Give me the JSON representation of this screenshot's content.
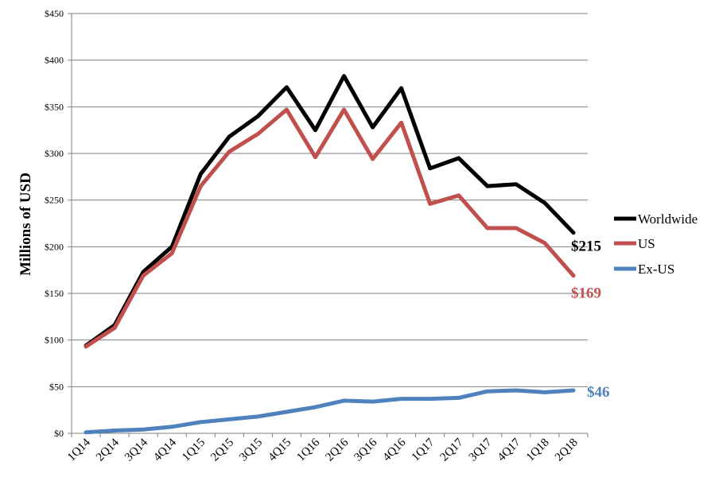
{
  "chart_data": {
    "type": "line",
    "title": "",
    "xlabel": "",
    "ylabel": "Millions of USD",
    "ylim": [
      0,
      450
    ],
    "ytick_step": 50,
    "ytick_labels": [
      "$0",
      "$50",
      "$100",
      "$150",
      "$200",
      "$250",
      "$300",
      "$350",
      "$400",
      "$450"
    ],
    "grid": true,
    "legend_position": "right",
    "categories": [
      "1Q14",
      "2Q14",
      "3Q14",
      "4Q14",
      "1Q15",
      "2Q15",
      "3Q15",
      "4Q15",
      "1Q16",
      "2Q16",
      "3Q16",
      "4Q16",
      "1Q17",
      "2Q17",
      "3Q17",
      "4Q17",
      "1Q18",
      "2Q18"
    ],
    "series": [
      {
        "name": "Worldwide",
        "color": "#000000",
        "values": [
          94,
          116,
          173,
          200,
          278,
          318,
          340,
          371,
          325,
          383,
          328,
          370,
          284,
          295,
          265,
          267,
          247,
          215
        ],
        "end_label": "$215"
      },
      {
        "name": "US",
        "color": "#c0504d",
        "values": [
          93,
          113,
          169,
          193,
          265,
          302,
          321,
          347,
          296,
          347,
          294,
          333,
          246,
          255,
          220,
          220,
          204,
          169
        ],
        "end_label": "$169"
      },
      {
        "name": "Ex-US",
        "color": "#4f81bd",
        "values": [
          1,
          3,
          4,
          7,
          12,
          15,
          18,
          23,
          28,
          35,
          34,
          37,
          37,
          38,
          45,
          46,
          44,
          46
        ],
        "end_label": "$46"
      }
    ]
  }
}
